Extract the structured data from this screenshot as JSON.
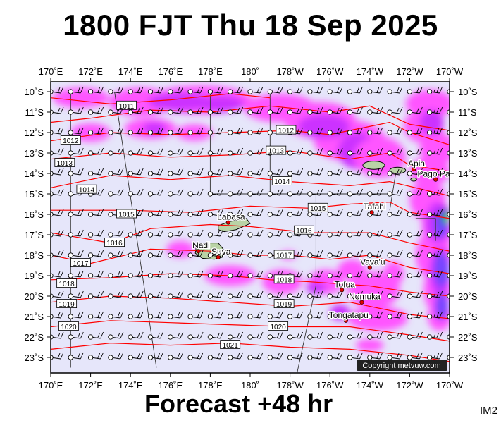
{
  "header": {
    "title": "1800 FJT Thu 18 Sep 2025"
  },
  "footer": {
    "forecast_label": "Forecast +48 hr",
    "map_code": "IM2"
  },
  "copyright": "Copyright metvuw.com",
  "map": {
    "lon_ticks": [
      "170˚E",
      "172˚E",
      "174˚E",
      "176˚E",
      "178˚E",
      "180˚",
      "178˚W",
      "176˚W",
      "174˚W",
      "172˚W",
      "170˚W"
    ],
    "lat_ticks": [
      "10˚S",
      "11˚S",
      "12˚S",
      "13˚S",
      "14˚S",
      "15˚S",
      "16˚S",
      "17˚S",
      "18˚S",
      "19˚S",
      "20˚S",
      "21˚S",
      "22˚S",
      "23˚S"
    ],
    "isobar_labels": [
      {
        "label": "1011",
        "lon": 173.8,
        "lat": -10.7
      },
      {
        "label": "1012",
        "lon": 171.0,
        "lat": -12.4
      },
      {
        "label": "1012",
        "lon": 181.8,
        "lat": -11.9
      },
      {
        "label": "1013",
        "lon": 170.7,
        "lat": -13.5
      },
      {
        "label": "1013",
        "lon": 181.3,
        "lat": -12.9
      },
      {
        "label": "1014",
        "lon": 171.8,
        "lat": -14.8
      },
      {
        "label": "1014",
        "lon": 181.6,
        "lat": -14.4
      },
      {
        "label": "1015",
        "lon": 173.8,
        "lat": -16.0
      },
      {
        "label": "1015",
        "lon": 183.4,
        "lat": -15.7
      },
      {
        "label": "1016",
        "lon": 173.2,
        "lat": -17.4
      },
      {
        "label": "1016",
        "lon": 182.7,
        "lat": -16.8
      },
      {
        "label": "1017",
        "lon": 171.5,
        "lat": -18.4
      },
      {
        "label": "1017",
        "lon": 181.7,
        "lat": -18.0
      },
      {
        "label": "1018",
        "lon": 170.8,
        "lat": -19.4
      },
      {
        "label": "1018",
        "lon": 181.7,
        "lat": -19.2
      },
      {
        "label": "1019",
        "lon": 170.8,
        "lat": -20.4
      },
      {
        "label": "1019",
        "lon": 181.7,
        "lat": -20.4
      },
      {
        "label": "1020",
        "lon": 170.9,
        "lat": -21.5
      },
      {
        "label": "1020",
        "lon": 181.4,
        "lat": -21.5
      },
      {
        "label": "1021",
        "lon": 179.0,
        "lat": -22.4
      }
    ],
    "places": [
      {
        "name": "Labasa",
        "lon": 178.9,
        "lat": -16.4
      },
      {
        "name": "Nadi",
        "lon": 177.4,
        "lat": -17.8
      },
      {
        "name": "Suva",
        "lon": 178.4,
        "lat": -18.1
      },
      {
        "name": "Apia",
        "lon": 188.2,
        "lat": -13.8
      },
      {
        "name": "Pago Pago",
        "lon": 189.3,
        "lat": -14.3
      },
      {
        "name": "Tafahi",
        "lon": 186.1,
        "lat": -15.9
      },
      {
        "name": "Vava'u",
        "lon": 186.0,
        "lat": -18.6
      },
      {
        "name": "Tofua",
        "lon": 184.6,
        "lat": -19.7
      },
      {
        "name": "Nomuka",
        "lon": 185.6,
        "lat": -20.3
      },
      {
        "name": "Tongatapu",
        "lon": 184.8,
        "lat": -21.2
      }
    ],
    "colors": {
      "background": "#e6e6fa",
      "isobar": "#ff0000",
      "rain_light": "#ff55ff",
      "rain_moderate": "#cc33ff",
      "rain_heavy": "#7744ff",
      "rain_intense": "#2222cc",
      "rain_extreme": "#22dd22"
    }
  }
}
